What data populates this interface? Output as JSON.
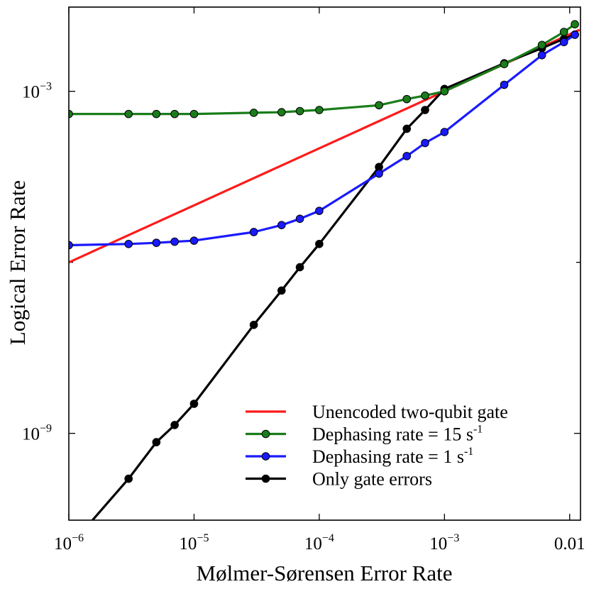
{
  "chart_data": {
    "type": "line",
    "xlabel": "Mølmer-Sørensen Error Rate",
    "ylabel": "Logical Error Rate",
    "x_scale": "log",
    "y_scale": "log",
    "xlim": [
      1e-06,
      0.0122
    ],
    "ylim": [
      3e-11,
      0.03
    ],
    "x_ticks": [
      {
        "value": 1e-06,
        "base": "10",
        "exp": "−6"
      },
      {
        "value": 1e-05,
        "base": "10",
        "exp": "−5"
      },
      {
        "value": 0.0001,
        "base": "10",
        "exp": "−4"
      },
      {
        "value": 0.001,
        "base": "10",
        "exp": "−3"
      },
      {
        "value": 0.01,
        "base": "0.01",
        "exp": ""
      }
    ],
    "y_ticks": [
      {
        "value": 0.001,
        "base": "10",
        "exp": "−3"
      },
      {
        "value": 1e-09,
        "base": "10",
        "exp": "−9"
      }
    ],
    "y_minor_ticks": [
      1e-06,
      1e-12
    ],
    "legend": {
      "placement": "bottom-right"
    },
    "series": [
      {
        "name": "Unencoded two-qubit gate",
        "legend_main": "Unencoded two-qubit gate",
        "legend_sup": "",
        "color": "#ff1a1a",
        "markers": false,
        "x": [
          1e-06,
          0.012
        ],
        "y": [
          1e-06,
          0.012
        ]
      },
      {
        "name": "Dephasing rate = 15 s-1",
        "legend_main": "Dephasing rate = 15 s",
        "legend_sup": "-1",
        "color": "#1a7d1a",
        "markers": true,
        "x": [
          1e-06,
          3e-06,
          5e-06,
          7e-06,
          1e-05,
          3e-05,
          5e-05,
          7e-05,
          0.0001,
          0.0003,
          0.0005,
          0.0007,
          0.001,
          0.003,
          0.006,
          0.009,
          0.011
        ],
        "y": [
          0.0004,
          0.0004,
          0.0004,
          0.0004,
          0.0004,
          0.00042,
          0.00043,
          0.00045,
          0.00047,
          0.00057,
          0.00073,
          0.00084,
          0.001,
          0.003,
          0.0065,
          0.011,
          0.015
        ]
      },
      {
        "name": "Dephasing rate = 1 s-1",
        "legend_main": "Dephasing rate = 1 s",
        "legend_sup": "-1",
        "color": "#1a1aff",
        "markers": true,
        "x": [
          1e-06,
          3e-06,
          5e-06,
          7e-06,
          1e-05,
          3e-05,
          5e-05,
          7e-05,
          0.0001,
          0.0003,
          0.0005,
          0.0007,
          0.001,
          0.003,
          0.006,
          0.009,
          0.011
        ],
        "y": [
          2e-06,
          2.1e-06,
          2.2e-06,
          2.3e-06,
          2.4e-06,
          3.4e-06,
          4.5e-06,
          5.8e-06,
          8e-06,
          3.6e-05,
          7.3e-05,
          0.000124,
          0.000193,
          0.0013,
          0.0043,
          0.0073,
          0.0098
        ]
      },
      {
        "name": "Only gate errors",
        "legend_main": "Only gate errors",
        "legend_sup": "",
        "color": "#000000",
        "markers": true,
        "x": [
          1e-06,
          3e-06,
          5e-06,
          7e-06,
          1e-05,
          3e-05,
          5e-05,
          7e-05,
          0.0001,
          0.0003,
          0.0005,
          0.0007,
          0.001,
          0.003,
          0.006,
          0.009,
          0.011
        ],
        "y": [
          1e-11,
          1.6e-10,
          7e-10,
          1.4e-09,
          3.3e-09,
          8e-08,
          3.2e-07,
          8.2e-07,
          2.1e-06,
          4.7e-05,
          0.00022,
          0.00047,
          0.0011,
          0.0031,
          0.0057,
          0.0083,
          0.0099
        ]
      }
    ]
  }
}
